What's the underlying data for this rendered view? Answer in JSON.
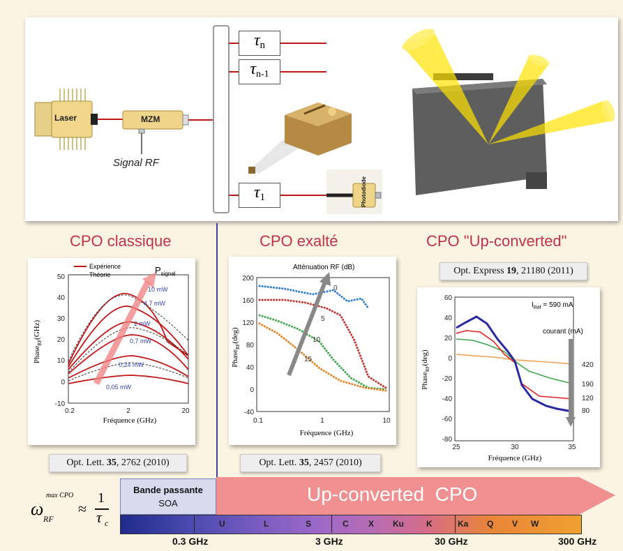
{
  "top": {
    "laser_label": "Laser",
    "mzm_label": "MZM",
    "signal_rf": "Signal RF",
    "tau_n": "τ",
    "tau_n_sub": "n",
    "tau_n1": "τ",
    "tau_n1_sub": "n-1",
    "tau_1": "τ",
    "tau_1_sub": "1",
    "photodiode_label": "Photodiode"
  },
  "left": {
    "title": "CPO classique",
    "legend_exp": "Expérience",
    "legend_theo": "Théorie",
    "psignal": "P",
    "psignal_sub": "signal",
    "ylabel": "Phase",
    "ylabel_sub": "RF",
    "ylabel_unit": "(GHz)",
    "xlabel": "Fréquence (GHz)",
    "y_ticks": [
      "50",
      "40",
      "30",
      "20",
      "10",
      "0",
      "-10"
    ],
    "x_ticks": [
      "0.2",
      "2",
      "20"
    ],
    "powers": [
      "10 mW",
      "4.7 mW",
      "2 mW",
      "0,7 mW",
      "0,24 mW",
      "0,05 mW"
    ],
    "reference": {
      "journal": "Opt. Lett.",
      "volume": "35",
      "rest": ", 2762 (2010)"
    }
  },
  "middle": {
    "title": "CPO exalté",
    "attenuation": "Atténuation RF (dB)",
    "ylabel": "Phase",
    "ylabel_sub": "RF",
    "ylabel_unit": "(deg)",
    "xlabel": "Fréquence (GHz)",
    "y_ticks": [
      "200",
      "160",
      "120",
      "80",
      "40",
      "0",
      "-40"
    ],
    "x_ticks": [
      "0.1",
      "1",
      "10"
    ],
    "att_levels": [
      "0",
      "5",
      "10",
      "15"
    ],
    "reference": {
      "journal": "Opt. Lett.",
      "volume": "35",
      "rest": ", 2457 (2010)"
    }
  },
  "right": {
    "title": "CPO \"Up-converted\"",
    "reference": {
      "journal": "Opt. Express",
      "volume": "19",
      "rest": ", 21180 (2011)"
    },
    "iref": "I",
    "iref_sub": "Réf",
    "iref_val": " = 590 mA",
    "courant": "courant (mA)",
    "ylabel": "Phase",
    "ylabel_sub": "RF",
    "ylabel_unit": "(deg)",
    "xlabel": "Fréquence (GHz)",
    "y_ticks": [
      "60",
      "40",
      "20",
      "0",
      "-20",
      "-40",
      "-60",
      "-80"
    ],
    "x_ticks": [
      "25",
      "30",
      "35"
    ],
    "currents": [
      "420",
      "190",
      "120",
      "80"
    ]
  },
  "bottom": {
    "omega": "ω",
    "omega_sub": "RF",
    "omega_sup": "max CPO",
    "approx": "≈",
    "one": "1",
    "tau_c": "τ",
    "tau_c_sub": "c",
    "bande_line1": "Bande passante",
    "bande_line2": "SOA",
    "upconv": "Up-converted  CPO",
    "bands": [
      "U",
      "L",
      "S",
      "C",
      "X",
      "Ku",
      "K",
      "Ka",
      "Q",
      "V",
      "W"
    ],
    "freqs": [
      "0.3 GHz",
      "3 GHz",
      "30 GHz",
      "300 GHz"
    ]
  },
  "colors": {
    "accent_red": "#c0324a",
    "divider_blue": "#3b3f9a",
    "arrow_pink": "#f08c8c"
  }
}
